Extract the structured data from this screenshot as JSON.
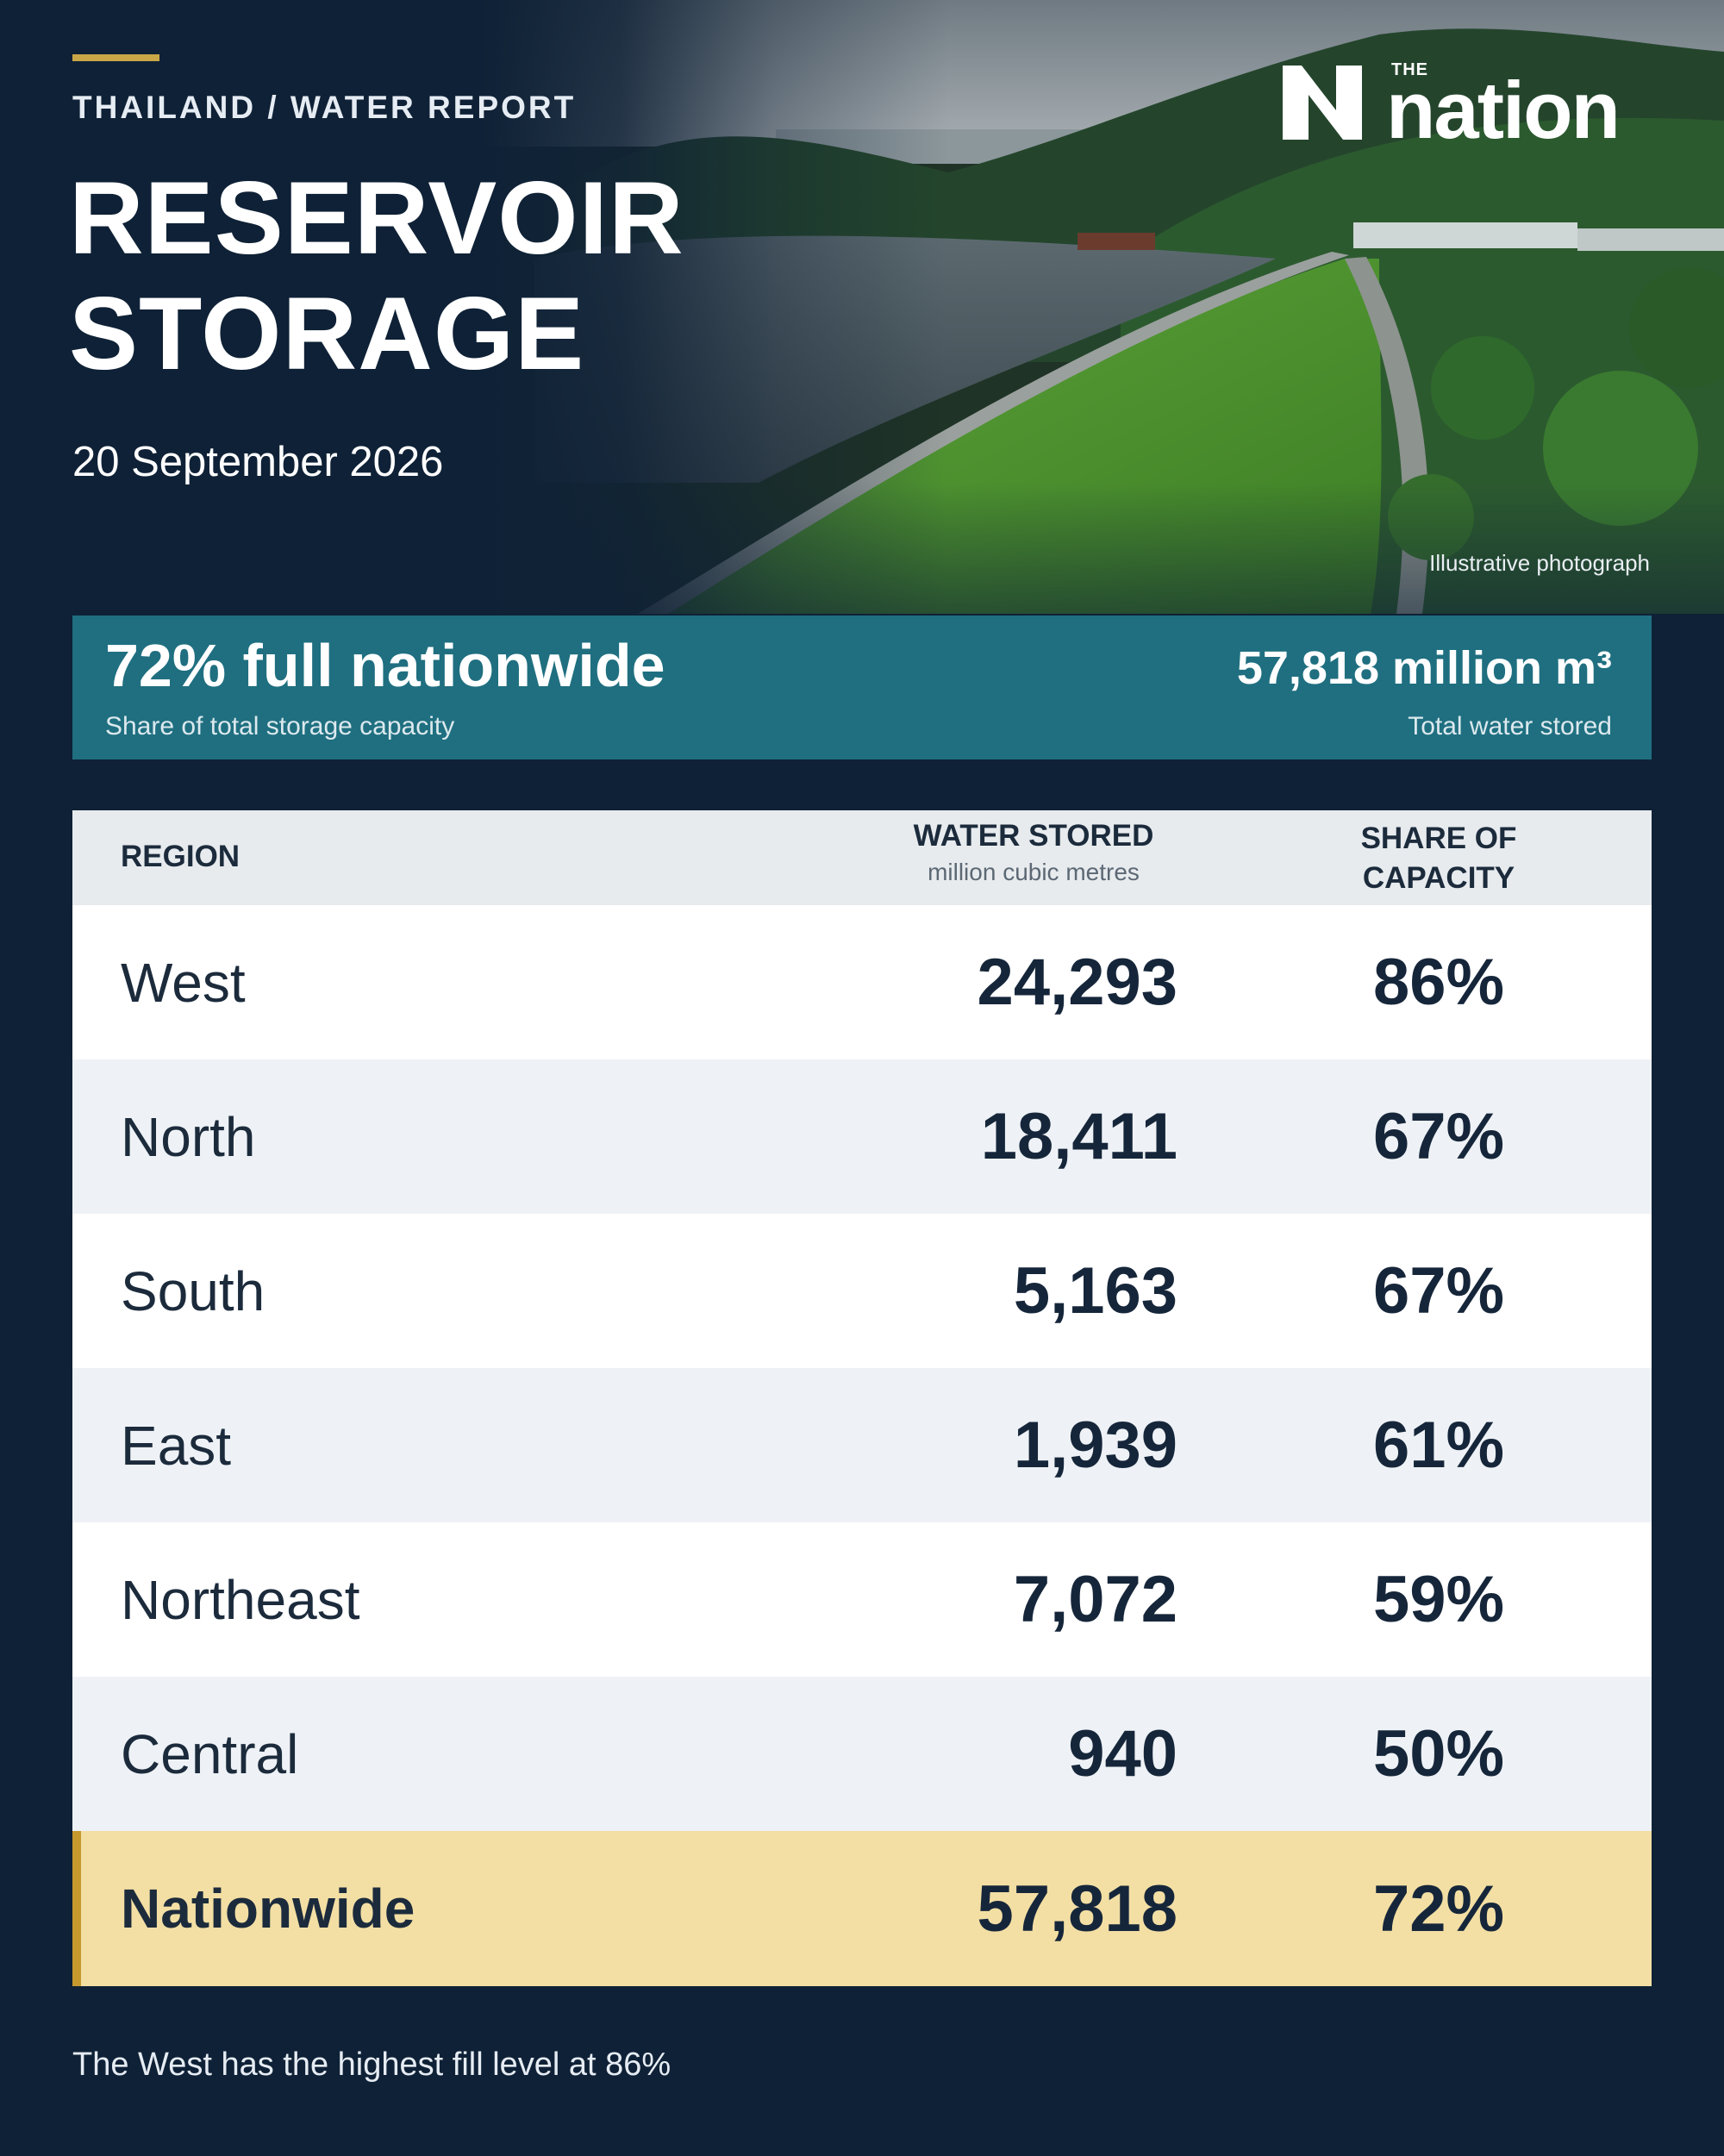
{
  "header": {
    "kicker": "THAILAND / WATER REPORT",
    "title_line1": "RESERVOIR",
    "title_line2": "STORAGE",
    "date": "20 September 2026"
  },
  "logo": {
    "the": "THE",
    "word": "nation"
  },
  "photo_credit": "Illustrative photograph",
  "summary": {
    "headline": "72% full nationwide",
    "headline_sub": "Share of total storage capacity",
    "total": "57,818 million m³",
    "total_sub": "Total water stored"
  },
  "table": {
    "columns": {
      "region": "REGION",
      "water": "WATER STORED",
      "water_unit": "million cubic metres",
      "share_line1": "SHARE OF",
      "share_line2": "CAPACITY"
    },
    "rows": [
      {
        "region": "West",
        "water": "24,293",
        "share": "86%"
      },
      {
        "region": "North",
        "water": "18,411",
        "share": "67%"
      },
      {
        "region": "South",
        "water": "5,163",
        "share": "67%"
      },
      {
        "region": "East",
        "water": "1,939",
        "share": "61%"
      },
      {
        "region": "Northeast",
        "water": "7,072",
        "share": "59%"
      },
      {
        "region": "Central",
        "water": "940",
        "share": "50%"
      }
    ],
    "total": {
      "region": "Nationwide",
      "water": "57,818",
      "share": "72%"
    }
  },
  "footnote": "The West has the highest fill level at 86%",
  "colors": {
    "background": "#0f2136",
    "accent_gold": "#c9a646",
    "summary_band": "#1f6f80",
    "total_row": "#f3dfa4"
  }
}
